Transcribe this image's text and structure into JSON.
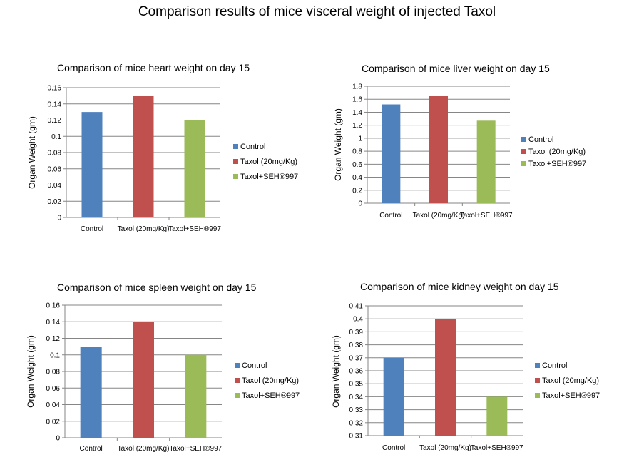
{
  "title": "Comparison results of mice visceral weight of injected Taxol",
  "chart_data": [
    {
      "type": "bar",
      "title": "Comparison of mice heart weight on day 15",
      "ylabel": "Organ Weight (gm)",
      "xlabel": "",
      "categories": [
        "Control",
        "Taxol (20mg/Kg)",
        "Taxol+SEH®997"
      ],
      "values": [
        0.13,
        0.15,
        0.12
      ],
      "ylim": [
        0,
        0.16
      ],
      "yticks": [
        "0",
        "0.02",
        "0.04",
        "0.06",
        "0.08",
        "0.1",
        "0.12",
        "0.14",
        "0.16"
      ],
      "colors": [
        "#4F81BD",
        "#C0504D",
        "#9BBB59"
      ],
      "legend": [
        "Control",
        "Taxol (20mg/Kg)",
        "Taxol+SEH®997"
      ],
      "legend_position": "right",
      "grid": true
    },
    {
      "type": "bar",
      "title": "Comparison of mice liver weight on day 15",
      "ylabel": "Organ Weight (gm)",
      "xlabel": "",
      "categories": [
        "Control",
        "Taxol (20mg/Kg)",
        "Taxol+SEH®997"
      ],
      "values": [
        1.52,
        1.65,
        1.27
      ],
      "ylim": [
        0,
        1.8
      ],
      "yticks": [
        "0",
        "0.2",
        "0.4",
        "0.6",
        "0.8",
        "1",
        "1.2",
        "1.4",
        "1.6",
        "1.8"
      ],
      "colors": [
        "#4F81BD",
        "#C0504D",
        "#9BBB59"
      ],
      "legend": [
        "Control",
        "Taxol (20mg/Kg)",
        "Taxol+SEH®997"
      ],
      "legend_position": "right",
      "grid": true
    },
    {
      "type": "bar",
      "title": "Comparison of mice spleen weight on day 15",
      "ylabel": "Organ Weight (gm)",
      "xlabel": "",
      "categories": [
        "Control",
        "Taxol (20mg/Kg)",
        "Taxol+SEH®997"
      ],
      "values": [
        0.11,
        0.14,
        0.1
      ],
      "ylim": [
        0,
        0.16
      ],
      "yticks": [
        "0",
        "0.02",
        "0.04",
        "0.06",
        "0.08",
        "0.1",
        "0.12",
        "0.14",
        "0.16"
      ],
      "colors": [
        "#4F81BD",
        "#C0504D",
        "#9BBB59"
      ],
      "legend": [
        "Control",
        "Taxol (20mg/Kg)",
        "Taxol+SEH®997"
      ],
      "legend_position": "right",
      "grid": true
    },
    {
      "type": "bar",
      "title": "Comparison of mice kidney weight on day 15",
      "ylabel": "Organ Weight (gm)",
      "xlabel": "",
      "categories": [
        "Control",
        "Taxol (20mg/Kg)",
        "Taxol+SEH®997"
      ],
      "values": [
        0.37,
        0.4,
        0.34
      ],
      "ylim": [
        0.31,
        0.41
      ],
      "yticks": [
        "0.31",
        "0.32",
        "0.33",
        "0.34",
        "0.35",
        "0.36",
        "0.37",
        "0.38",
        "0.39",
        "0.4",
        "0.41"
      ],
      "colors": [
        "#4F81BD",
        "#C0504D",
        "#9BBB59"
      ],
      "legend": [
        "Control",
        "Taxol (20mg/Kg)",
        "Taxol+SEH®997"
      ],
      "legend_position": "right",
      "grid": true
    }
  ]
}
